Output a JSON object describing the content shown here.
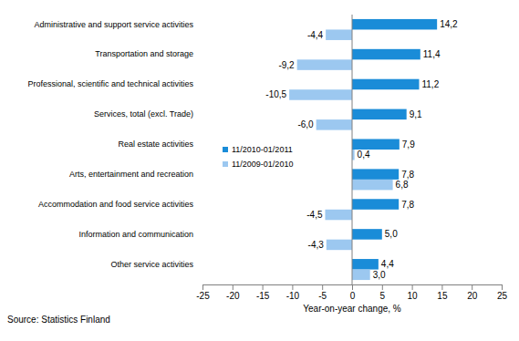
{
  "chart_data": {
    "type": "bar",
    "orientation": "horizontal",
    "x_label": "Year-on-year change, %",
    "annotations": [
      "Source: Statistics Finland"
    ],
    "categories": [
      "Administrative and support service activities",
      "Transportation and storage",
      "Professional, scientific and technical activities",
      "Services, total (excl. Trade)",
      "Real estate activities",
      "Arts, entertainment and recreation",
      "Accommodation and food service activities",
      "Information and communication",
      "Other service activities"
    ],
    "series": [
      {
        "name": "11/2010-01/2011",
        "color": "#1a8cd8",
        "values": [
          14.2,
          11.4,
          11.2,
          9.1,
          7.9,
          7.8,
          7.8,
          5.0,
          4.4
        ],
        "value_labels": [
          "14,2",
          "11,4",
          "11,2",
          "9,1",
          "7,9",
          "7,8",
          "7,8",
          "5,0",
          "4,4"
        ]
      },
      {
        "name": "11/2009-01/2010",
        "color": "#9cc8f0",
        "values": [
          -4.4,
          -9.2,
          -10.5,
          -6.0,
          0.4,
          6.8,
          -4.5,
          -4.3,
          3.0
        ],
        "value_labels": [
          "-4,4",
          "-9,2",
          "-10,5",
          "-6,0",
          "0,4",
          "6,8",
          "-4,5",
          "-4,3",
          "3,0"
        ]
      }
    ],
    "xlim": [
      -25,
      25
    ],
    "xticks": [
      -25,
      -20,
      -15,
      -10,
      -5,
      0,
      5,
      10,
      15,
      20,
      25
    ],
    "grid": false,
    "legend": "left",
    "data_labels": true
  }
}
